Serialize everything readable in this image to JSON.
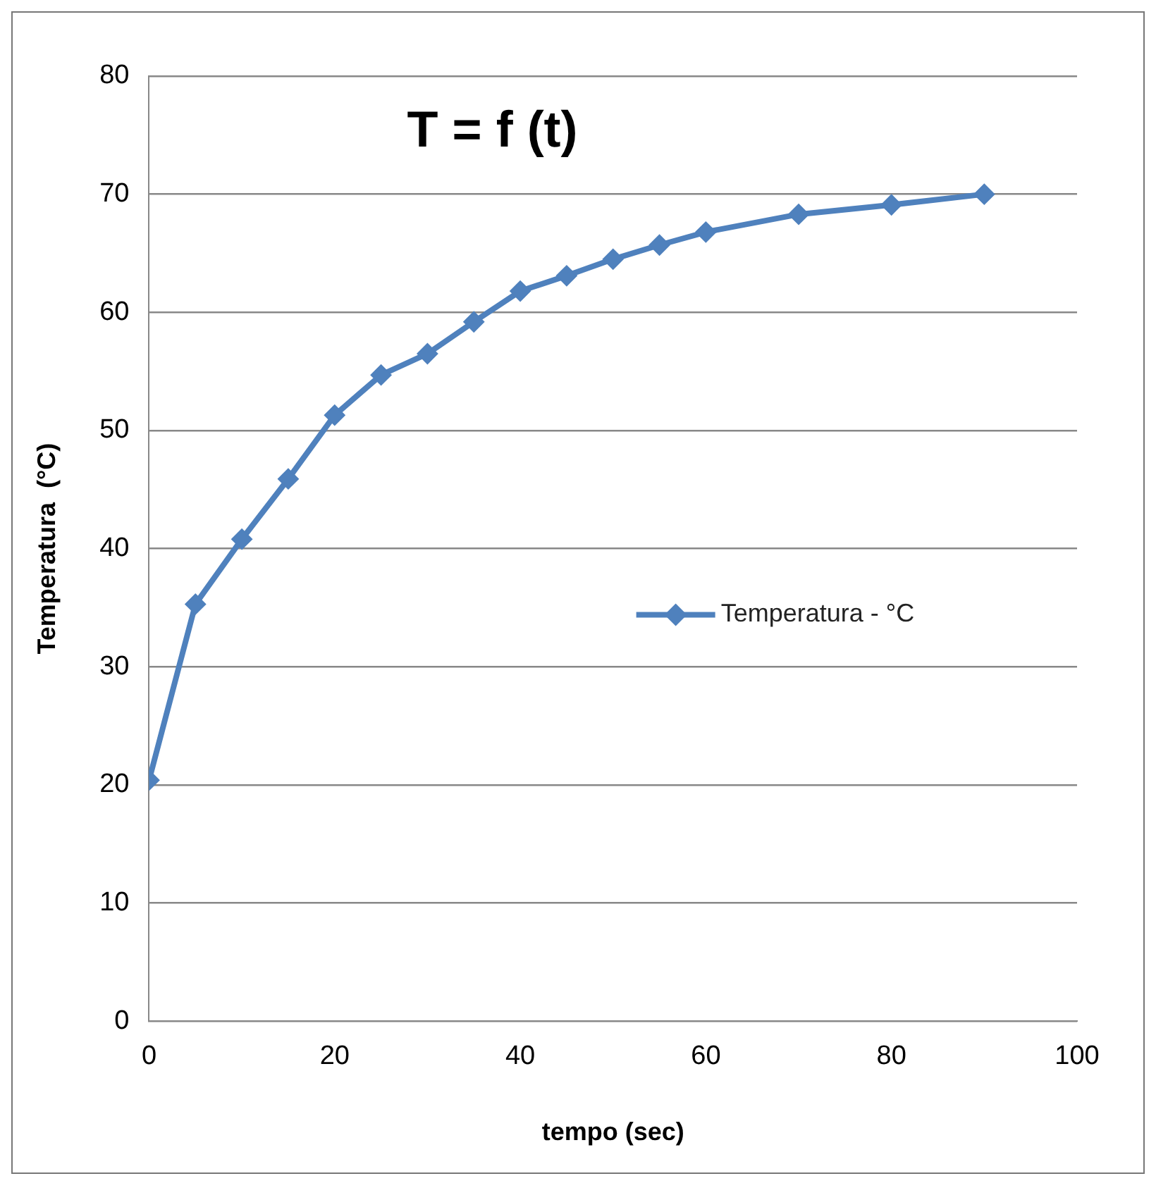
{
  "chart_data": {
    "type": "line",
    "title": "T = f (t)",
    "xlabel": "tempo (sec)",
    "ylabel": "Temperatura  (°C)",
    "x": [
      0,
      5,
      10,
      15,
      20,
      25,
      30,
      35,
      40,
      45,
      50,
      55,
      60,
      70,
      80,
      90
    ],
    "series": [
      {
        "name": "Temperatura - °C",
        "color": "#4f81bd",
        "values": [
          20.4,
          35.3,
          40.8,
          45.9,
          51.3,
          54.7,
          56.5,
          59.2,
          61.8,
          63.1,
          64.5,
          65.7,
          66.8,
          68.3,
          69.1,
          70.0
        ]
      }
    ],
    "xlim": [
      0,
      100
    ],
    "xticks": [
      0,
      20,
      40,
      60,
      80,
      100
    ],
    "ylim": [
      0,
      80
    ],
    "yticks": [
      0,
      10,
      20,
      30,
      40,
      50,
      60,
      70,
      80
    ],
    "grid": "y",
    "legend": "right",
    "marker": "diamond",
    "line_style": "solid"
  }
}
